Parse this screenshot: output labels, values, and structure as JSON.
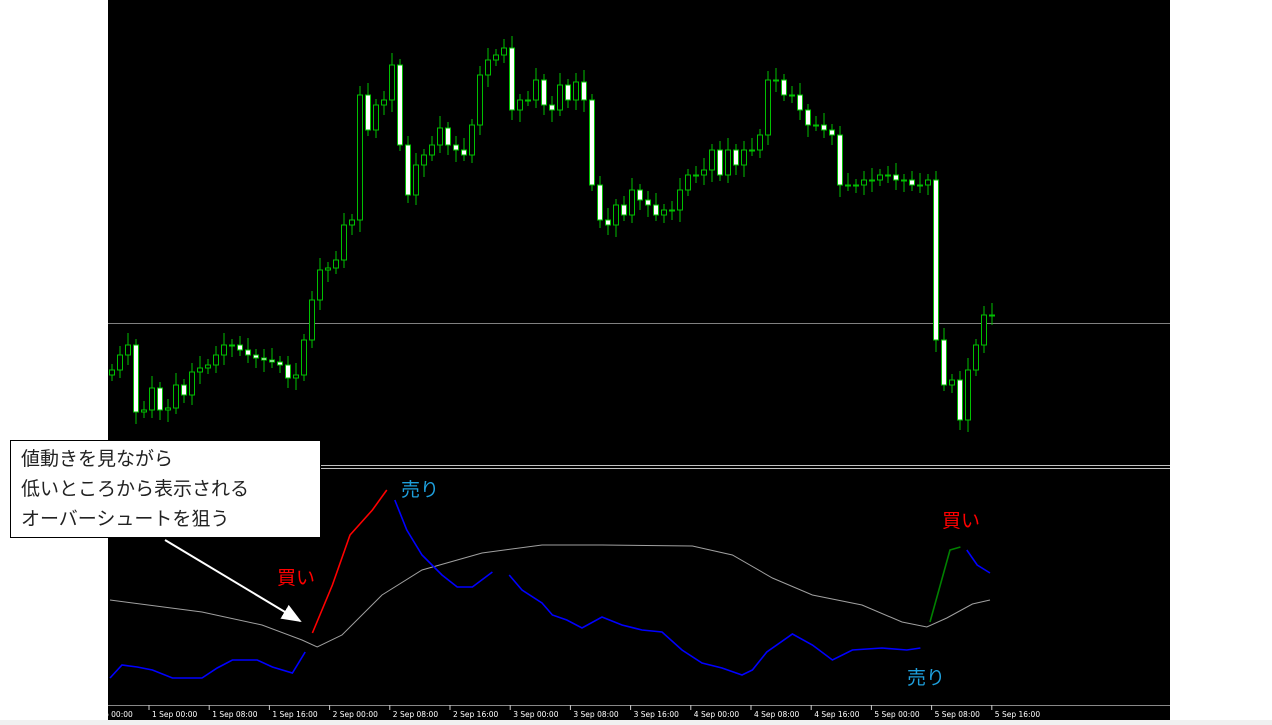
{
  "colors": {
    "background": "#000000",
    "bull_body": "#000000",
    "bear_body": "#ffffff",
    "candle_wick": "#00c000",
    "level_line": "#808080",
    "midline": "#a0a0a0",
    "blue_line": "#0000ff",
    "red_line": "#ff0000",
    "green_line": "#008000",
    "sell_label": "#1e9fdc",
    "buy_label": "#ff0000"
  },
  "callout": {
    "lines": [
      "値動きを見ながら",
      "低いところから表示される",
      "オーバーシュートを狙う"
    ]
  },
  "annotations": {
    "sell_top": "売り",
    "buy_left": "買い",
    "buy_right": "買い",
    "sell_bottom": "売り"
  },
  "chart_data": [
    {
      "type": "candlestick",
      "title": "",
      "note_units": "relative price (no price axis shown)",
      "close": [
        100,
        115,
        125,
        58,
        60,
        82,
        60,
        62,
        85,
        75,
        98,
        102,
        105,
        115,
        125,
        125,
        120,
        115,
        112,
        110,
        108,
        105,
        92,
        95,
        130,
        170,
        200,
        202,
        210,
        245,
        250,
        375,
        340,
        365,
        370,
        405,
        325,
        275,
        305,
        315,
        325,
        342,
        325,
        320,
        315,
        345,
        395,
        410,
        415,
        422,
        360,
        370,
        370,
        390,
        365,
        360,
        385,
        370,
        388,
        370,
        285,
        250,
        245,
        265,
        255,
        280,
        270,
        265,
        255,
        260,
        260,
        280,
        295,
        295,
        300,
        320,
        295,
        320,
        305,
        320,
        320,
        335,
        390,
        390,
        375,
        375,
        360,
        345,
        345,
        340,
        335,
        285,
        285,
        285,
        290,
        290,
        295,
        295,
        290,
        290,
        285,
        285,
        290,
        130,
        85,
        90,
        50,
        100,
        125,
        155,
        155
      ],
      "horizontal_level": 147,
      "x_tick_labels": [
        "1 Sep 00:00",
        "1 Sep 08:00",
        "1 Sep 16:00",
        "2 Sep 00:00",
        "2 Sep 08:00",
        "2 Sep 16:00",
        "3 Sep 00:00",
        "3 Sep 08:00",
        "3 Sep 16:00",
        "4 Sep 00:00",
        "4 Sep 08:00",
        "4 Sep 16:00",
        "5 Sep 00:00",
        "5 Sep 08:00",
        "5 Sep 16:00"
      ]
    },
    {
      "type": "line",
      "title": "",
      "series": [
        {
          "color": "#a0a0a0",
          "points": [
            [
              0,
              105
            ],
            [
              11.5,
              93
            ],
            [
              19,
              80
            ],
            [
              24,
              65
            ],
            [
              25.9,
              58
            ],
            [
              29,
              70
            ],
            [
              34,
              110
            ],
            [
              39,
              135
            ],
            [
              46.5,
              152
            ],
            [
              54,
              160
            ],
            [
              61.5,
              160
            ],
            [
              72.8,
              159
            ],
            [
              77.8,
              150
            ],
            [
              82.8,
              127
            ],
            [
              87.8,
              110
            ],
            [
              94,
              100
            ],
            [
              99,
              83
            ],
            [
              102.1,
              78
            ],
            [
              104.6,
              87
            ],
            [
              107.8,
              101
            ],
            [
              110,
              105
            ]
          ]
        },
        {
          "color": "#0000ff",
          "points": [
            [
              0,
              27
            ],
            [
              1.5,
              40
            ],
            [
              3.4,
              38
            ],
            [
              5.3,
              35
            ],
            [
              7.8,
              27
            ],
            [
              11.5,
              27
            ],
            [
              13.4,
              37
            ],
            [
              15.3,
              45
            ],
            [
              18.4,
              45
            ],
            [
              20.3,
              38
            ],
            [
              22.8,
              32
            ],
            [
              24.4,
              53
            ]
          ]
        },
        {
          "color": "#ff0000",
          "points": [
            [
              25.3,
              72
            ],
            [
              27.8,
              120
            ],
            [
              30,
              170
            ],
            [
              32.8,
              195
            ],
            [
              34.6,
              215
            ]
          ]
        },
        {
          "color": "#0000ff",
          "points": [
            [
              35.6,
              205
            ],
            [
              37.1,
              175
            ],
            [
              39,
              150
            ],
            [
              41.5,
              130
            ],
            [
              43.4,
              118
            ],
            [
              45.3,
              118
            ],
            [
              47.8,
              133
            ]
          ]
        },
        {
          "color": "#0000ff",
          "points": [
            [
              49.9,
              130
            ],
            [
              51.5,
              115
            ],
            [
              54,
              102
            ],
            [
              55.3,
              90
            ],
            [
              57.1,
              85
            ],
            [
              59,
              77
            ],
            [
              61.5,
              88
            ],
            [
              64,
              80
            ],
            [
              66.5,
              75
            ],
            [
              69,
              73
            ],
            [
              71.5,
              55
            ],
            [
              74,
              42
            ],
            [
              76.5,
              37
            ],
            [
              79,
              30
            ],
            [
              80.3,
              35
            ],
            [
              82.1,
              53
            ],
            [
              85.3,
              71
            ],
            [
              87.8,
              60
            ],
            [
              90.3,
              45
            ],
            [
              92.8,
              55
            ],
            [
              96.5,
              57
            ],
            [
              99.6,
              55
            ],
            [
              101.3,
              57
            ]
          ]
        },
        {
          "color": "#008000",
          "points": [
            [
              102.5,
              83
            ],
            [
              105,
              155
            ],
            [
              106.3,
              158
            ]
          ]
        },
        {
          "color": "#0000ff",
          "points": [
            [
              107.1,
              155
            ],
            [
              108.4,
              140
            ],
            [
              110,
              132
            ]
          ]
        }
      ]
    }
  ]
}
